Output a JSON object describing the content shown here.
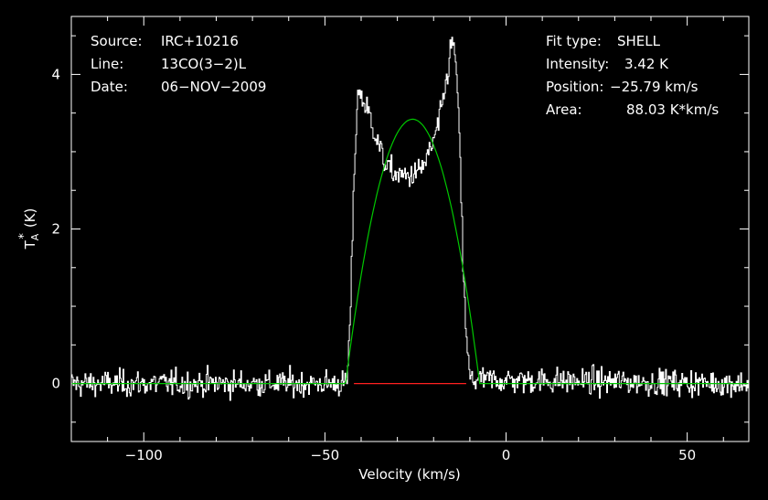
{
  "chart_data": {
    "type": "line",
    "xlabel": "Velocity (km/s)",
    "ylabel": "T",
    "ylabel_sub": "A",
    "ylabel_sup": "*",
    "ylabel_unit": "(K)",
    "xlim": [
      -120,
      67
    ],
    "ylim": [
      -0.75,
      4.75
    ],
    "x_ticks": [
      {
        "value": -100,
        "label": "−100"
      },
      {
        "value": -50,
        "label": "−50"
      },
      {
        "value": 0,
        "label": "0"
      },
      {
        "value": 50,
        "label": "50"
      }
    ],
    "y_ticks": [
      {
        "value": 0,
        "label": "0"
      },
      {
        "value": 2,
        "label": "2"
      },
      {
        "value": 4,
        "label": "4"
      }
    ],
    "info_left": [
      {
        "label": "Source:",
        "value": "IRC+10216"
      },
      {
        "label": "Line:",
        "value": "13CO(3−2)L"
      },
      {
        "label": "Date:",
        "value": "06−NOV−2009"
      }
    ],
    "info_right": [
      {
        "label": "Fit type:",
        "value": "SHELL"
      },
      {
        "label": "Intensity:",
        "value": "3.42 K"
      },
      {
        "label": "Position:",
        "value": "−25.79 km/s"
      },
      {
        "label": "Area:",
        "value": "88.03 K*km/s"
      }
    ],
    "series": [
      {
        "kind": "observed-spectrum",
        "color": "#ffffff",
        "noise_rms": 0.12,
        "x": [
          -120,
          -44,
          -43,
          -42,
          -41,
          -40,
          -38,
          -36,
          -34,
          -32,
          -30,
          -28,
          -26,
          -24,
          -22,
          -20,
          -18,
          -16,
          -15,
          -14,
          -13,
          -12,
          -11,
          -10,
          67
        ],
        "y": [
          0,
          0,
          1.0,
          2.8,
          3.8,
          3.7,
          3.5,
          3.2,
          2.9,
          2.75,
          2.7,
          2.68,
          2.7,
          2.75,
          2.9,
          3.15,
          3.5,
          4.1,
          4.45,
          4.2,
          3.2,
          1.6,
          0.5,
          0.05,
          0
        ]
      },
      {
        "kind": "shell-fit",
        "color": "#00c800",
        "center": -25.79,
        "peak": 3.42,
        "half_width": 18.5,
        "xlim": [
          -120,
          67
        ]
      },
      {
        "kind": "baseline",
        "color": "#ff2020",
        "x": [
          -42,
          -11
        ],
        "y": [
          0,
          0
        ]
      }
    ]
  }
}
